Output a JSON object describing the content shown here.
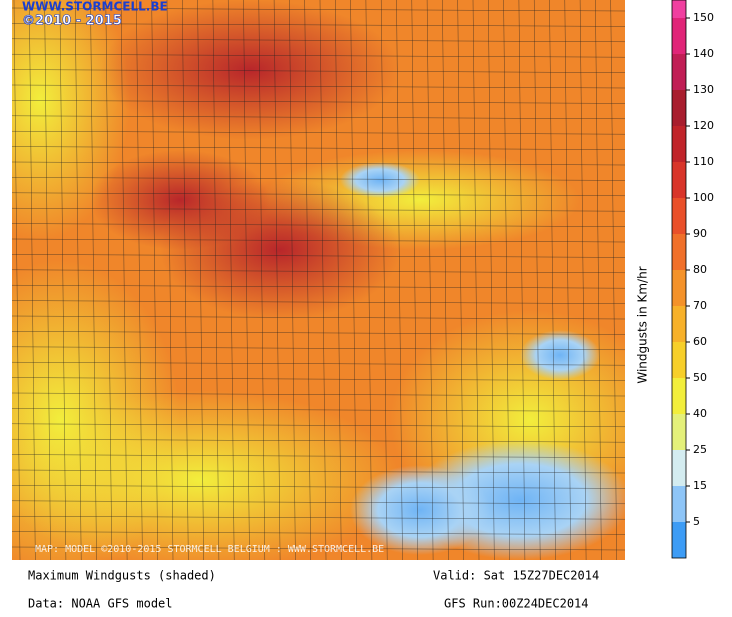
{
  "logo": {
    "site": "WWW.STORMCELL.BE",
    "years": "©2010 - 2015"
  },
  "map_credit": "MAP: MODEL ©2010-2015 STORMCELL BELGIUM : WWW.STORMCELL.BE",
  "colorbar": {
    "label": "Windgusts in Km/hr",
    "ticks": [
      5,
      15,
      25,
      40,
      50,
      60,
      70,
      80,
      90,
      100,
      110,
      120,
      130,
      140,
      150
    ],
    "colors": [
      "#3d9cf5",
      "#8ec5f7",
      "#d4ecf0",
      "#e4f07a",
      "#f2ee3c",
      "#f7cf2a",
      "#f7b12a",
      "#f4922a",
      "#f0702a",
      "#e9502a",
      "#d8352a",
      "#c0242a",
      "#a81e2e",
      "#c01e55",
      "#e02578",
      "#f040a0"
    ]
  },
  "footer": {
    "field": "Maximum Windgusts (shaded)",
    "valid": "Valid: Sat 15Z27DEC2014",
    "data": "Data: NOAA GFS model",
    "run": "GFS Run:00Z24DEC2014"
  }
}
